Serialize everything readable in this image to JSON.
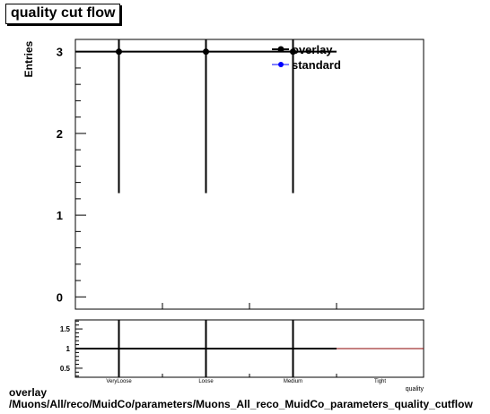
{
  "title": "quality cut flow",
  "footer": {
    "line1": "overlay",
    "line2": "/Muons/All/reco/MuidCo/parameters/Muons_All_reco_MuidCo_parameters_quality_cutflow"
  },
  "chart_data": [
    {
      "type": "scatter",
      "ylabel": "Entries",
      "xlabel": "quality",
      "ylim": [
        -0.15,
        3.15
      ],
      "y_ticks": [
        0,
        1,
        2,
        3
      ],
      "categories": [
        "VeryLoose",
        "Loose",
        "Medium",
        "Tight"
      ],
      "legend": {
        "placement": "top-right",
        "entries": [
          "overlay",
          "standard"
        ]
      },
      "series": [
        {
          "name": "overlay",
          "color": "#000000",
          "values": [
            3,
            3,
            3,
            0
          ],
          "y_error_low": [
            1.73,
            1.73,
            1.73,
            0
          ],
          "y_error_high": [
            1.73,
            1.73,
            1.73,
            0
          ]
        },
        {
          "name": "standard",
          "color": "#0000ff",
          "values": [
            3,
            3,
            3,
            0
          ]
        }
      ]
    },
    {
      "type": "scatter",
      "ylim": [
        0.27,
        1.73
      ],
      "y_ticks": [
        0.5,
        1,
        1.5
      ],
      "y_tick_labels": [
        "0.5",
        "1",
        "1.5"
      ],
      "categories": [
        "VeryLoose",
        "Loose",
        "Medium",
        "Tight"
      ],
      "reference_line": 1,
      "reference_color": "#8b0000",
      "series": [
        {
          "name": "ratio",
          "color": "#000000",
          "values": [
            1,
            1,
            1,
            null
          ]
        }
      ]
    }
  ]
}
